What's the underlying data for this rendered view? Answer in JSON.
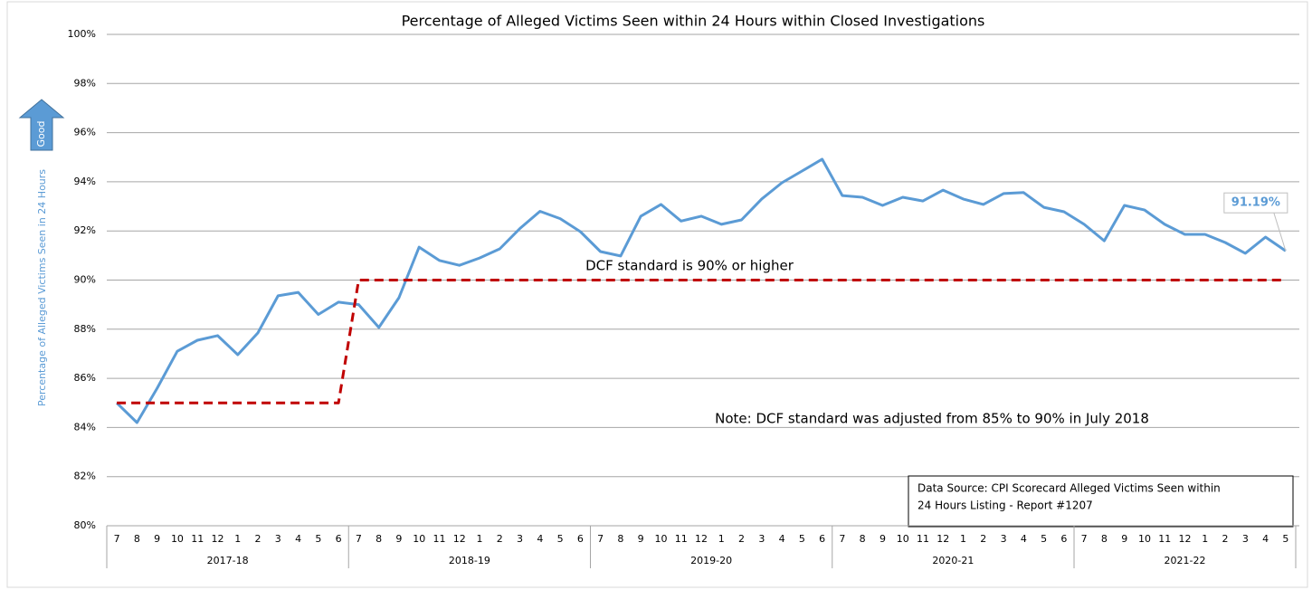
{
  "chart_data": {
    "type": "line",
    "title": "Percentage of Alleged Victims Seen within 24 Hours within Closed Investigations",
    "y_axis_label": "Percentage of Alleged Victims Seen in 24 Hours",
    "arrow_label": "Good",
    "category_groups": [
      {
        "label": "2017-18",
        "categories": [
          "7",
          "8",
          "9",
          "10",
          "11",
          "12",
          "1",
          "2",
          "3",
          "4",
          "5",
          "6"
        ]
      },
      {
        "label": "2018-19",
        "categories": [
          "7",
          "8",
          "9",
          "10",
          "11",
          "12",
          "1",
          "2",
          "3",
          "4",
          "5",
          "6"
        ]
      },
      {
        "label": "2019-20",
        "categories": [
          "7",
          "8",
          "9",
          "10",
          "11",
          "12",
          "1",
          "2",
          "3",
          "4",
          "5",
          "6"
        ]
      },
      {
        "label": "2020-21",
        "categories": [
          "7",
          "8",
          "9",
          "10",
          "11",
          "12",
          "1",
          "2",
          "3",
          "4",
          "5",
          "6"
        ]
      },
      {
        "label": "2021-22",
        "categories": [
          "7",
          "8",
          "9",
          "10",
          "11",
          "12",
          "1",
          "2",
          "3",
          "4",
          "5"
        ]
      }
    ],
    "series": [
      {
        "color": "#5b9bd5",
        "style": "solid",
        "values": [
          85.0,
          84.2,
          85.6,
          87.1,
          87.55,
          87.74,
          86.96,
          87.85,
          89.36,
          89.5,
          88.6,
          89.1,
          89.0,
          88.07,
          89.28,
          91.34,
          90.8,
          90.6,
          90.9,
          91.27,
          92.1,
          92.8,
          92.5,
          91.97,
          91.16,
          90.98,
          92.6,
          93.08,
          92.4,
          92.6,
          92.27,
          92.45,
          93.3,
          93.96,
          94.44,
          94.92,
          93.44,
          93.37,
          93.04,
          93.37,
          93.22,
          93.66,
          93.3,
          93.08,
          93.52,
          93.56,
          92.96,
          92.78,
          92.27,
          91.6,
          93.04,
          92.85,
          92.27,
          91.86,
          91.86,
          91.53,
          91.09,
          91.75,
          91.19
        ],
        "value_labels": [
          null,
          null,
          null,
          null,
          null,
          null,
          null,
          null,
          null,
          null,
          null,
          null,
          null,
          null,
          null,
          null,
          null,
          null,
          null,
          null,
          null,
          null,
          null,
          null,
          null,
          null,
          null,
          null,
          null,
          null,
          null,
          null,
          null,
          null,
          null,
          null,
          null,
          null,
          null,
          null,
          null,
          null,
          null,
          null,
          null,
          null,
          null,
          null,
          null,
          null,
          null,
          null,
          null,
          null,
          null,
          null,
          null,
          null,
          "91.19%"
        ]
      },
      {
        "color": "#c00000",
        "style": "dashed",
        "values": [
          85,
          85,
          85,
          85,
          85,
          85,
          85,
          85,
          85,
          85,
          85,
          85,
          90,
          90,
          90,
          90,
          90,
          90,
          90,
          90,
          90,
          90,
          90,
          90,
          90,
          90,
          90,
          90,
          90,
          90,
          90,
          90,
          90,
          90,
          90,
          90,
          90,
          90,
          90,
          90,
          90,
          90,
          90,
          90,
          90,
          90,
          90,
          90,
          90,
          90,
          90,
          90,
          90,
          90,
          90,
          90,
          90,
          90,
          90
        ]
      }
    ],
    "ylim": [
      80,
      100
    ],
    "yticks": [
      {
        "value": 80,
        "label": "80%"
      },
      {
        "value": 82,
        "label": "82%"
      },
      {
        "value": 84,
        "label": "84%"
      },
      {
        "value": 86,
        "label": "86%"
      },
      {
        "value": 88,
        "label": "88%"
      },
      {
        "value": 90,
        "label": "90%"
      },
      {
        "value": 92,
        "label": "92%"
      },
      {
        "value": 94,
        "label": "94%"
      },
      {
        "value": 96,
        "label": "96%"
      },
      {
        "value": 98,
        "label": "98%"
      },
      {
        "value": 100,
        "label": "100%"
      }
    ],
    "grid": true,
    "annotations": [
      "DCF standard is 90% or higher",
      "Note: DCF standard was adjusted from 85% to 90% in July 2018"
    ],
    "source_lines": [
      "Data Source: CPI Scorecard Alleged Victims Seen within",
      "24 Hours Listing - Report #1207"
    ]
  }
}
